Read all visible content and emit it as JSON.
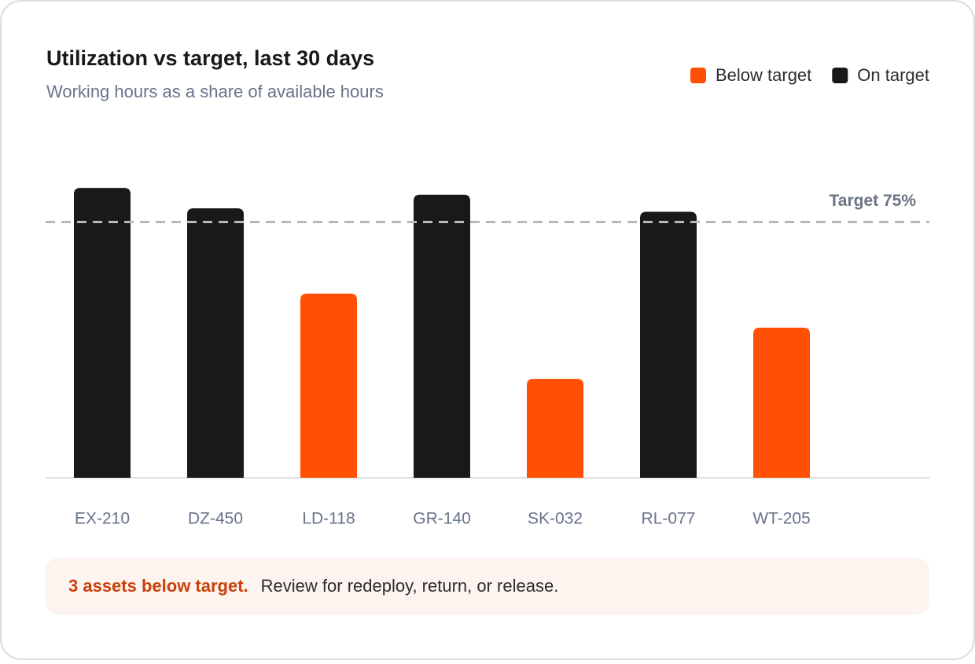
{
  "chart_data": {
    "type": "bar",
    "title": "Utilization vs target, last 30 days",
    "subtitle": "Working hours as a share of available hours",
    "categories": [
      "EX-210",
      "DZ-450",
      "LD-118",
      "GR-140",
      "SK-032",
      "RL-077",
      "WT-205"
    ],
    "series": [
      {
        "name": "Below target",
        "color": "#ff5005",
        "values": [
          null,
          null,
          54,
          null,
          29,
          null,
          44
        ]
      },
      {
        "name": "On target",
        "color": "#18191b",
        "values": [
          85,
          79,
          null,
          83,
          null,
          78,
          null
        ]
      }
    ],
    "ylim": [
      0,
      100
    ],
    "target": 75,
    "target_label": "Target 75%",
    "legend": "top-right",
    "callout": {
      "emphasis": "3 assets below target.",
      "text": "Review for redeploy, return, or release."
    }
  }
}
